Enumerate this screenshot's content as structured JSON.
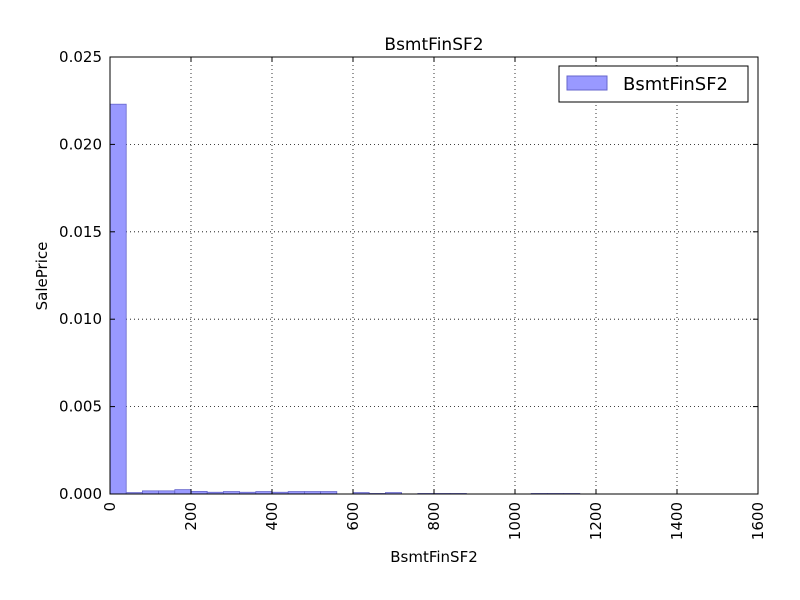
{
  "chart_data": {
    "type": "bar",
    "title": "BsmtFinSF2",
    "xlabel": "BsmtFinSF2",
    "ylabel": "SalePrice",
    "xlim": [
      0,
      1600
    ],
    "ylim": [
      0,
      0.025
    ],
    "xticks": [
      0,
      200,
      400,
      600,
      800,
      1000,
      1200,
      1400,
      1600
    ],
    "yticks": [
      0.0,
      0.005,
      0.01,
      0.015,
      0.02,
      0.025
    ],
    "xtick_labels": [
      "0",
      "200",
      "400",
      "600",
      "800",
      "1000",
      "1200",
      "1400",
      "1600"
    ],
    "ytick_labels": [
      "0.000",
      "0.005",
      "0.010",
      "0.015",
      "0.020",
      "0.025"
    ],
    "grid": true,
    "legend_position": "top-right",
    "series": [
      {
        "name": "BsmtFinSF2",
        "color": "#9999ff",
        "edge_color": "#6666cc",
        "bin_edges": [
          0,
          40,
          80,
          120,
          160,
          200,
          240,
          280,
          320,
          360,
          400,
          440,
          480,
          520,
          560,
          600,
          640,
          680,
          720,
          760,
          800,
          840,
          880,
          920,
          960,
          1000,
          1040,
          1080,
          1120,
          1160,
          1200,
          1240,
          1280,
          1320,
          1360,
          1400,
          1440,
          1480
        ],
        "values": [
          0.0223,
          8e-05,
          0.00018,
          0.00018,
          0.00025,
          0.00015,
          0.0001,
          0.00014,
          0.0001,
          0.00014,
          0.0001,
          0.00014,
          0.00014,
          0.00014,
          0.0,
          8e-05,
          3e-05,
          8e-05,
          0.0,
          3e-05,
          3e-05,
          3e-05,
          0.0,
          0.0,
          0.0,
          0.0,
          3e-05,
          3e-05,
          3e-05,
          0.0,
          0.0,
          0.0,
          0.0,
          0.0,
          0.0,
          0.0,
          0.0
        ]
      }
    ]
  }
}
